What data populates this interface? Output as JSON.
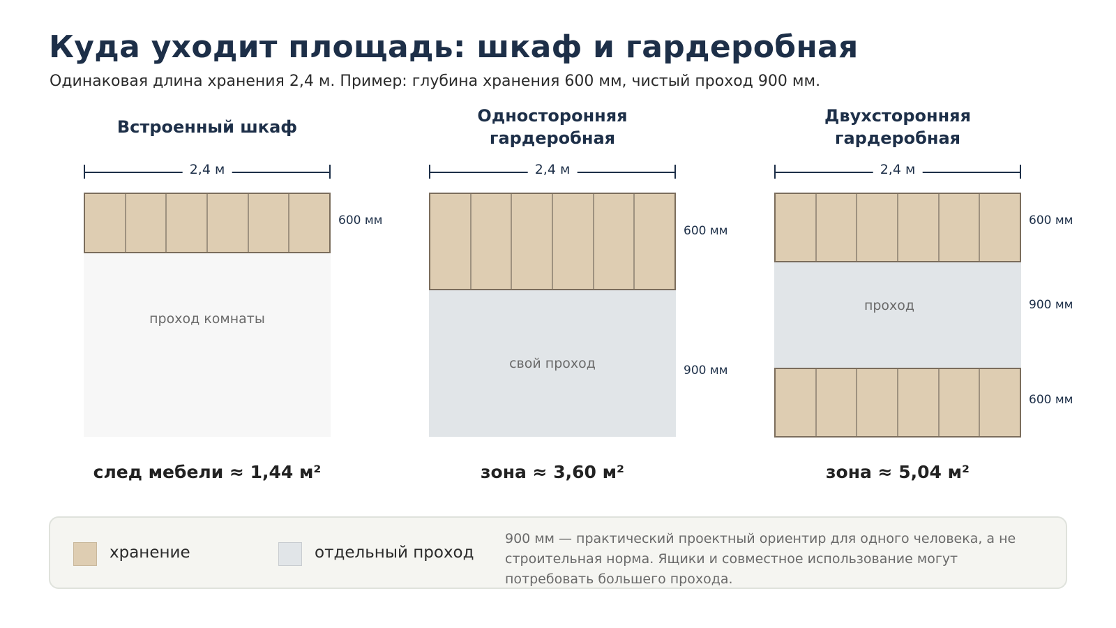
{
  "header": {
    "title": "Куда уходит площадь: шкаф и гардеробная",
    "subtitle": "Одинаковая длина хранения 2,4 м. Пример: глубина хранения 600 мм, чистый проход 900 мм."
  },
  "panels": [
    {
      "title": "Встроенный шкаф",
      "length_label": "2,4 м",
      "storage_depth_label": "600 мм",
      "aisle_label": "проход комнаты",
      "area_label": "след мебели ≈ 1,44 м²"
    },
    {
      "title": "Односторонняя гардеробная",
      "length_label": "2,4 м",
      "storage_depth_label": "600 мм",
      "aisle_label": "свой проход",
      "aisle_depth_label": "900 мм",
      "area_label": "зона ≈ 3,60 м²"
    },
    {
      "title": "Двухсторонняя гардеробная",
      "length_label": "2,4 м",
      "storage_top_depth_label": "600 мм",
      "aisle_label": "проход",
      "aisle_depth_label": "900 мм",
      "storage_bottom_depth_label": "600 мм",
      "area_label": "зона ≈ 5,04 м²"
    }
  ],
  "legend": {
    "storage_label": "хранение",
    "aisle_label": "отдельный проход",
    "note": "900 мм — практический проектный ориентир для одного человека, а не строительная норма. Ящики и совместное использование могут потребовать большего прохода."
  },
  "colors": {
    "storage": "#decdb2",
    "aisle": "#e1e5e8",
    "room_aisle": "#f7f7f7",
    "title": "#1d2f48"
  }
}
